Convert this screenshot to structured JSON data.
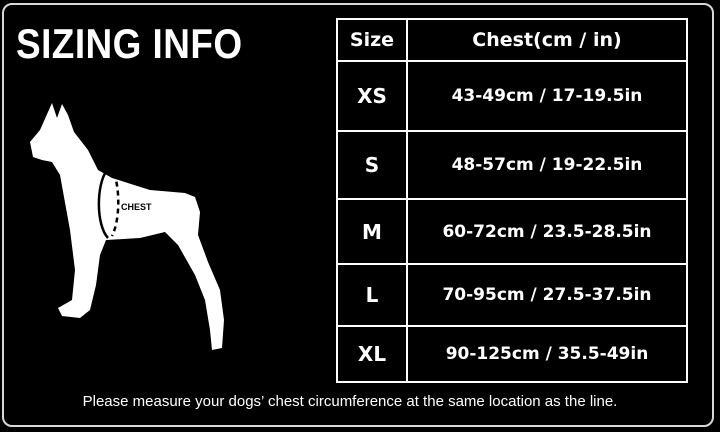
{
  "title": "SIZING INFO",
  "diagram": {
    "chest_label": "CHEST"
  },
  "table": {
    "headers": [
      "Size",
      "Chest(cm / in)"
    ],
    "rows": [
      {
        "size": "XS",
        "chest": "43-49cm / 17-19.5in"
      },
      {
        "size": "S",
        "chest": "48-57cm / 19-22.5in"
      },
      {
        "size": "M",
        "chest": "60-72cm / 23.5-28.5in"
      },
      {
        "size": "L",
        "chest": "70-95cm / 27.5-37.5in"
      },
      {
        "size": "XL",
        "chest": "90-125cm / 35.5-49in"
      }
    ]
  },
  "footer": "Please measure your dogs’  chest circumference at the same location as the line."
}
